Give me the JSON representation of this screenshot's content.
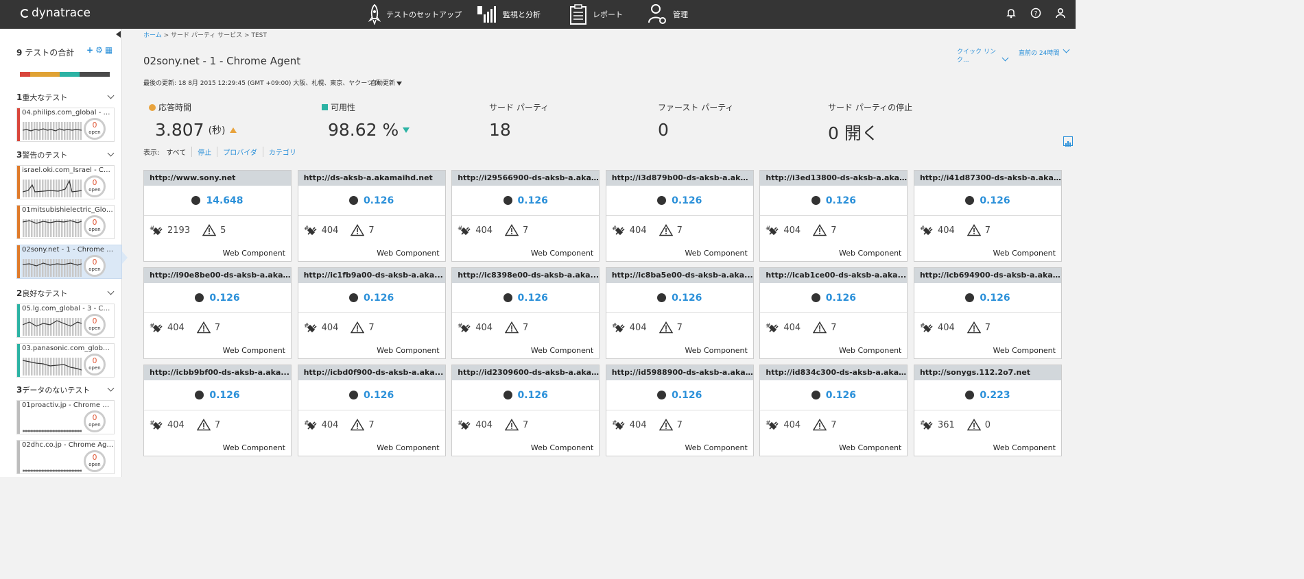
{
  "app": {
    "logo": "dynatrace"
  },
  "nav": {
    "setup": "テストのセットアップ",
    "monitoring": "監視と分析",
    "reports": "レポート",
    "admin": "管理"
  },
  "sidebar": {
    "total_count": "9",
    "total_label": "テストの合計",
    "status_colors": [
      "#d9463b",
      "#e0a234",
      "#2cb3a4",
      "#4a4a4a"
    ],
    "groups": [
      {
        "count": "1",
        "label": "重大なテスト",
        "color": "#d9463b",
        "items": [
          {
            "name": "04.philips.com_global - 2 - C...",
            "open_count": "0",
            "open_label": "open"
          }
        ]
      },
      {
        "count": "3",
        "label": "警告のテスト",
        "color": "#e07b2a",
        "items": [
          {
            "name": "israel.oki.com_Israel - Chro...",
            "open_count": "0",
            "open_label": "open"
          },
          {
            "name": "01mitsubishielectric_Global...",
            "open_count": "0",
            "open_label": "open"
          },
          {
            "name": "02sony.net - 1 - Chrome Ag...",
            "open_count": "0",
            "open_label": "open"
          }
        ]
      },
      {
        "count": "2",
        "label": "良好なテスト",
        "color": "#2cb3a4",
        "items": [
          {
            "name": "05.lg.com_global - 3 - Chro...",
            "open_count": "0",
            "open_label": "open"
          },
          {
            "name": "03.panasonic.com_global - ...",
            "open_count": "0",
            "open_label": "open"
          }
        ]
      },
      {
        "count": "3",
        "label": "データのないテスト",
        "color": "#bdbdbd",
        "items": [
          {
            "name": "01proactiv.jp - Chrome Agent",
            "open_count": "0",
            "open_label": "open"
          },
          {
            "name": "02dhc.co.jp - Chrome Agent",
            "open_count": "0",
            "open_label": "open"
          }
        ]
      }
    ]
  },
  "breadcrumb": {
    "home": "ホーム",
    "rest": " > サード パーティ サービス > TEST"
  },
  "page": {
    "title": "02sony.net - 1 - Chrome Agent",
    "last_updated": "最後の更新: 18 8月 2015 12:29:45 (GMT +09:00) 大阪、札幌、東京、ヤクーツク",
    "auto_refresh": "自動更新",
    "quick_link": "クイック リンク...",
    "time_range": "直前の 24時間"
  },
  "metrics": {
    "response": {
      "label": "応答時間",
      "value": "3.807",
      "unit": "(秒)"
    },
    "availability": {
      "label": "可用性",
      "value": "98.62 %"
    },
    "third_party": {
      "label": "サード パーティ",
      "value": "18"
    },
    "first_party": {
      "label": "ファースト パーティ",
      "value": "0"
    },
    "outages": {
      "label": "サード パーティの停止",
      "value": "0 開く"
    }
  },
  "filters": {
    "label": "表示:",
    "all": "すべて",
    "stop": "停止",
    "provider": "プロバイダ",
    "category": "カテゴリ"
  },
  "tiles": [
    {
      "host": "http://www.sony.net",
      "value": "14.648",
      "requests": "2193",
      "warnings": "5",
      "type": "Web Component"
    },
    {
      "host": "http://ds-aksb-a.akamaihd.net",
      "value": "0.126",
      "requests": "404",
      "warnings": "7",
      "type": "Web Component"
    },
    {
      "host": "http://i29566900-ds-aksb-a.aka...",
      "value": "0.126",
      "requests": "404",
      "warnings": "7",
      "type": "Web Component"
    },
    {
      "host": "http://i3d879b00-ds-aksb-a.aka...",
      "value": "0.126",
      "requests": "404",
      "warnings": "7",
      "type": "Web Component"
    },
    {
      "host": "http://i3ed13800-ds-aksb-a.aka...",
      "value": "0.126",
      "requests": "404",
      "warnings": "7",
      "type": "Web Component"
    },
    {
      "host": "http://i41d87300-ds-aksb-a.aka...",
      "value": "0.126",
      "requests": "404",
      "warnings": "7",
      "type": "Web Component"
    },
    {
      "host": "http://i90e8be00-ds-aksb-a.aka...",
      "value": "0.126",
      "requests": "404",
      "warnings": "7",
      "type": "Web Component"
    },
    {
      "host": "http://ic1fb9a00-ds-aksb-a.aka...",
      "value": "0.126",
      "requests": "404",
      "warnings": "7",
      "type": "Web Component"
    },
    {
      "host": "http://ic8398e00-ds-aksb-a.aka...",
      "value": "0.126",
      "requests": "404",
      "warnings": "7",
      "type": "Web Component"
    },
    {
      "host": "http://ic8ba5e00-ds-aksb-a.aka...",
      "value": "0.126",
      "requests": "404",
      "warnings": "7",
      "type": "Web Component"
    },
    {
      "host": "http://icab1ce00-ds-aksb-a.aka...",
      "value": "0.126",
      "requests": "404",
      "warnings": "7",
      "type": "Web Component"
    },
    {
      "host": "http://icb694900-ds-aksb-a.aka...",
      "value": "0.126",
      "requests": "404",
      "warnings": "7",
      "type": "Web Component"
    },
    {
      "host": "http://icbb9bf00-ds-aksb-a.aka...",
      "value": "0.126",
      "requests": "404",
      "warnings": "7",
      "type": "Web Component"
    },
    {
      "host": "http://icbd0f900-ds-aksb-a.aka...",
      "value": "0.126",
      "requests": "404",
      "warnings": "7",
      "type": "Web Component"
    },
    {
      "host": "http://id2309600-ds-aksb-a.aka...",
      "value": "0.126",
      "requests": "404",
      "warnings": "7",
      "type": "Web Component"
    },
    {
      "host": "http://id5988900-ds-aksb-a.aka...",
      "value": "0.126",
      "requests": "404",
      "warnings": "7",
      "type": "Web Component"
    },
    {
      "host": "http://id834c300-ds-aksb-a.aka...",
      "value": "0.126",
      "requests": "404",
      "warnings": "7",
      "type": "Web Component"
    },
    {
      "host": "http://sonygs.112.2o7.net",
      "value": "0.223",
      "requests": "361",
      "warnings": "0",
      "type": "Web Component"
    }
  ]
}
